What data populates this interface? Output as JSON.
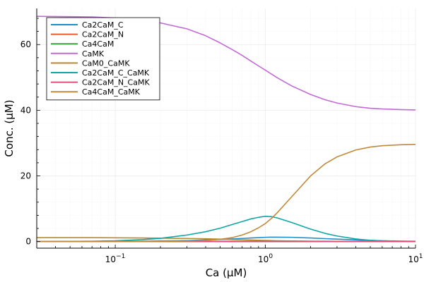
{
  "chart_data": {
    "type": "line",
    "xlabel": "Ca (μM)",
    "ylabel": "Conc. (μM)",
    "xscale": "log",
    "xlim": [
      0.03,
      10
    ],
    "ylim": [
      -2,
      71
    ],
    "x_ticks": [
      {
        "value": 0.1,
        "base": "10",
        "exp": "−1"
      },
      {
        "value": 1,
        "base": "10",
        "exp": "0"
      },
      {
        "value": 10,
        "base": "10",
        "exp": "1"
      }
    ],
    "y_ticks": [
      0,
      20,
      40,
      60
    ],
    "grid": true,
    "legend_position": "top-left",
    "x": [
      0.03,
      0.05,
      0.07,
      0.1,
      0.15,
      0.2,
      0.3,
      0.4,
      0.5,
      0.6,
      0.7,
      0.8,
      0.9,
      1.0,
      1.1,
      1.2,
      1.5,
      2.0,
      2.5,
      3.0,
      4.0,
      5.0,
      6.0,
      8.0,
      10.0
    ],
    "series": [
      {
        "name": "Ca2CaM_C",
        "color": "#1f8ec7",
        "values": [
          0.0,
          0.0,
          0.02,
          0.05,
          0.1,
          0.18,
          0.3,
          0.5,
          0.65,
          0.8,
          0.95,
          1.1,
          1.2,
          1.3,
          1.35,
          1.35,
          1.3,
          1.1,
          0.9,
          0.75,
          0.5,
          0.35,
          0.25,
          0.15,
          0.1
        ]
      },
      {
        "name": "Ca2CaM_N",
        "color": "#e35e32",
        "values": [
          0.0,
          0.0,
          0.0,
          0.0,
          0.0,
          0.0,
          0.0,
          0.0,
          0.0,
          0.0,
          0.0,
          0.0,
          0.0,
          0.0,
          0.0,
          0.0,
          0.0,
          0.0,
          0.0,
          0.0,
          0.0,
          0.0,
          0.0,
          0.0,
          0.0
        ]
      },
      {
        "name": "Ca4CaM",
        "color": "#3a9d3a",
        "values": [
          0.0,
          0.0,
          0.0,
          0.0,
          0.0,
          0.0,
          0.0,
          0.0,
          0.0,
          0.0,
          0.0,
          0.0,
          0.0,
          0.0,
          0.0,
          0.0,
          0.0,
          0.0,
          0.0,
          0.0,
          0.0,
          0.0,
          0.0,
          0.0,
          0.0
        ]
      },
      {
        "name": "CaMK",
        "color": "#c26ad6",
        "values": [
          68.6,
          68.5,
          68.4,
          68.1,
          67.4,
          66.6,
          64.8,
          62.7,
          60.5,
          58.5,
          56.7,
          55.0,
          53.5,
          52.2,
          51.0,
          49.9,
          47.4,
          44.8,
          43.2,
          42.2,
          41.1,
          40.6,
          40.4,
          40.2,
          40.1
        ]
      },
      {
        "name": "CaM0_CaMK",
        "color": "#b98a2c",
        "values": [
          1.2,
          1.2,
          1.2,
          1.15,
          1.1,
          1.05,
          0.95,
          0.85,
          0.75,
          0.65,
          0.55,
          0.48,
          0.4,
          0.35,
          0.3,
          0.25,
          0.18,
          0.1,
          0.06,
          0.04,
          0.02,
          0.01,
          0.0,
          0.0,
          0.0
        ]
      },
      {
        "name": "Ca2CaM_C_CaMK",
        "color": "#10a6a9",
        "values": [
          0.0,
          0.05,
          0.1,
          0.25,
          0.6,
          1.0,
          2.0,
          3.0,
          4.1,
          5.2,
          6.1,
          6.9,
          7.4,
          7.7,
          7.6,
          7.2,
          5.8,
          3.8,
          2.5,
          1.7,
          0.8,
          0.4,
          0.25,
          0.1,
          0.05
        ]
      },
      {
        "name": "Ca2CaM_N_CaMK",
        "color": "#e04f7a",
        "values": [
          0.0,
          0.0,
          0.0,
          0.0,
          0.0,
          0.0,
          0.02,
          0.05,
          0.08,
          0.1,
          0.12,
          0.14,
          0.15,
          0.16,
          0.16,
          0.16,
          0.15,
          0.12,
          0.1,
          0.08,
          0.05,
          0.03,
          0.02,
          0.01,
          0.0
        ]
      },
      {
        "name": "Ca4CaM_CaMK",
        "color": "#c08a38",
        "values": [
          0.0,
          0.0,
          0.0,
          0.0,
          0.0,
          0.05,
          0.15,
          0.35,
          0.7,
          1.2,
          2.0,
          3.0,
          4.2,
          5.5,
          7.1,
          8.8,
          13.7,
          20.0,
          23.7,
          25.8,
          27.9,
          28.8,
          29.2,
          29.5,
          29.6
        ]
      }
    ]
  }
}
